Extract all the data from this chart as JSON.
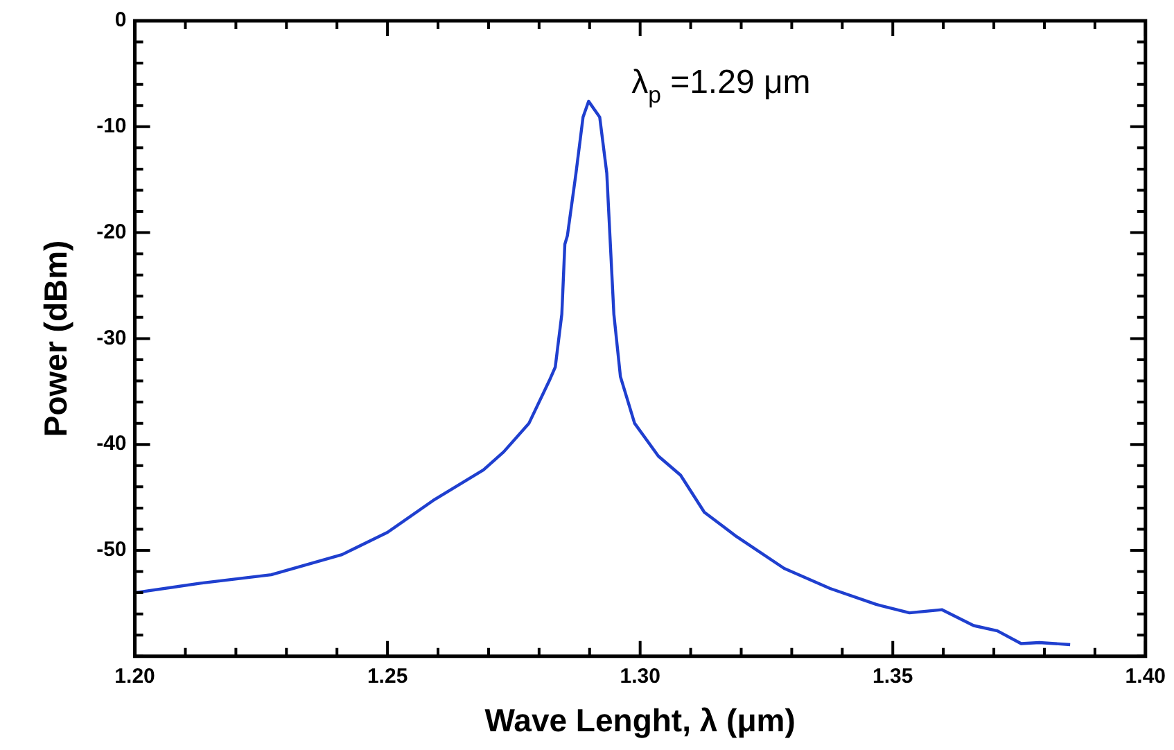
{
  "chart_data": {
    "type": "line",
    "xlabel": "Wave Lenght, λ (μm)",
    "ylabel": "Power (dBm)",
    "annotations": [
      "λ$_{p}$ =1.29 μm"
    ],
    "xlim": [
      1.2,
      1.4
    ],
    "ylim": [
      -60,
      0
    ],
    "xticks": [
      {
        "value": 1.2,
        "label": "1.20"
      },
      {
        "value": 1.21,
        "label": null
      },
      {
        "value": 1.22,
        "label": null
      },
      {
        "value": 1.23,
        "label": null
      },
      {
        "value": 1.24,
        "label": null
      },
      1.25,
      {
        "value": 1.26,
        "label": null
      },
      {
        "value": 1.27,
        "label": null
      },
      {
        "value": 1.28,
        "label": null
      },
      {
        "value": 1.29,
        "label": null
      },
      {
        "value": 1.3,
        "label": "1.30"
      },
      {
        "value": 1.31,
        "label": null
      },
      {
        "value": 1.32,
        "label": null
      },
      {
        "value": 1.33,
        "label": null
      },
      {
        "value": 1.34,
        "label": null
      },
      1.35,
      {
        "value": 1.36,
        "label": null
      },
      {
        "value": 1.37,
        "label": null
      },
      {
        "value": 1.38,
        "label": null
      },
      {
        "value": 1.39,
        "label": null
      },
      {
        "value": 1.4,
        "label": "1.40"
      }
    ],
    "yticks": [
      {
        "value": -60,
        "label": null
      },
      {
        "value": -58,
        "label": null
      },
      {
        "value": -56,
        "label": null
      },
      {
        "value": -54,
        "label": null
      },
      {
        "value": -52,
        "label": null
      },
      -50,
      {
        "value": -48,
        "label": null
      },
      {
        "value": -46,
        "label": null
      },
      {
        "value": -44,
        "label": null
      },
      {
        "value": -42,
        "label": null
      },
      -40,
      {
        "value": -38,
        "label": null
      },
      {
        "value": -36,
        "label": null
      },
      {
        "value": -34,
        "label": null
      },
      {
        "value": -32,
        "label": null
      },
      -30,
      {
        "value": -28,
        "label": null
      },
      {
        "value": -26,
        "label": null
      },
      {
        "value": -24,
        "label": null
      },
      {
        "value": -22,
        "label": null
      },
      -20,
      {
        "value": -18,
        "label": null
      },
      {
        "value": -16,
        "label": null
      },
      {
        "value": -14,
        "label": null
      },
      {
        "value": -12,
        "label": null
      },
      -10,
      {
        "value": -8,
        "label": null
      },
      {
        "value": -6,
        "label": null
      },
      {
        "value": -4,
        "label": null
      },
      {
        "value": -2,
        "label": null
      },
      0
    ],
    "grid": false,
    "legend": false,
    "marker": "none",
    "line_style": "solid",
    "series": [
      {
        "color": "#1f3fcf",
        "x": [
          1.2,
          1.213,
          1.227,
          1.241,
          1.25,
          1.259,
          1.269,
          1.273,
          1.278,
          1.282,
          1.2832,
          1.2845,
          1.2851,
          1.2856,
          1.2873,
          1.2887,
          1.2898,
          1.292,
          1.2934,
          1.2948,
          1.2961,
          1.2989,
          1.3036,
          1.308,
          1.3127,
          1.3191,
          1.3285,
          1.3376,
          1.3467,
          1.3533,
          1.3597,
          1.366,
          1.3707,
          1.3754,
          1.379,
          1.3851
        ],
        "values": [
          -54.0,
          -53.1,
          -52.3,
          -50.4,
          -48.3,
          -45.3,
          -42.4,
          -40.7,
          -38.0,
          -34.0,
          -32.7,
          -27.7,
          -21.1,
          -20.3,
          -14.4,
          -9.1,
          -7.6,
          -9.1,
          -14.4,
          -27.7,
          -33.6,
          -38.0,
          -41.1,
          -42.9,
          -46.4,
          -48.7,
          -51.7,
          -53.6,
          -55.1,
          -55.9,
          -55.6,
          -57.1,
          -57.6,
          -58.8,
          -58.7,
          -58.9
        ]
      }
    ]
  }
}
